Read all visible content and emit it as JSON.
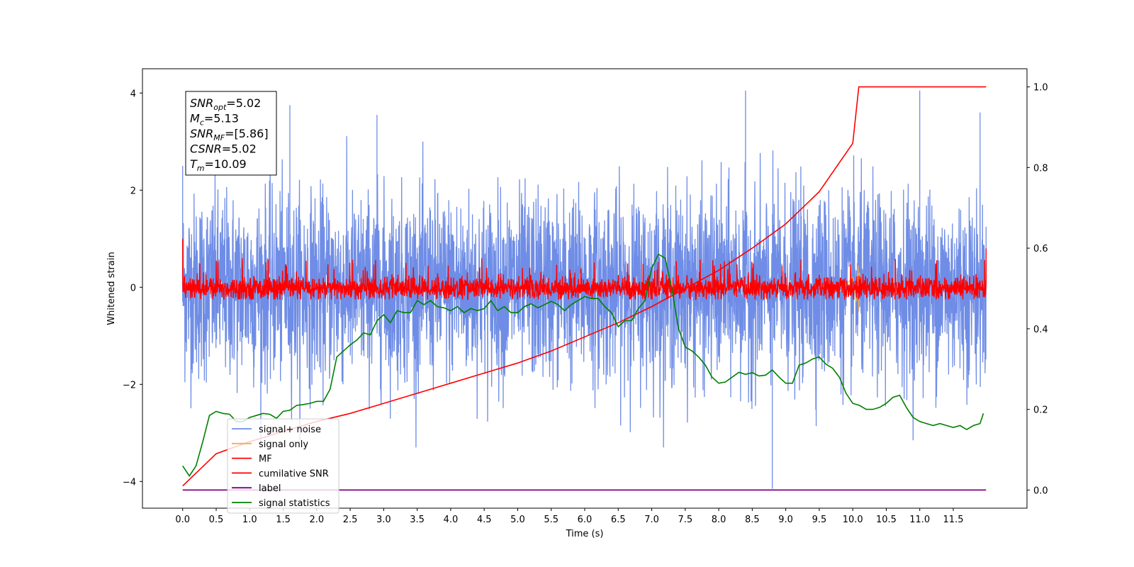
{
  "chart_data": {
    "type": "line",
    "xlabel": "Time (s)",
    "ylabel": "Whitened strain",
    "xlim": [
      -0.6,
      12.6
    ],
    "ylim": [
      -4.55,
      4.5
    ],
    "y2lim": [
      -0.045,
      1.045
    ],
    "xticks": [
      0.0,
      0.5,
      1.0,
      1.5,
      2.0,
      2.5,
      3.0,
      3.5,
      4.0,
      4.5,
      5.0,
      5.5,
      6.0,
      6.5,
      7.0,
      7.5,
      8.0,
      8.5,
      9.0,
      9.5,
      10.0,
      10.5,
      11.0,
      11.5
    ],
    "xtick_labels": [
      "0.0",
      "0.5",
      "1.0",
      "1.5",
      "2.0",
      "2.5",
      "3.0",
      "3.5",
      "4.0",
      "4.5",
      "5.0",
      "5.5",
      "6.0",
      "6.5",
      "7.0",
      "7.5",
      "8.0",
      "8.5",
      "9.0",
      "9.5",
      "10.0",
      "10.5",
      "11.0",
      "11.5"
    ],
    "yticks": [
      -4,
      -2,
      0,
      2,
      4
    ],
    "ytick_labels": [
      "−4",
      "−2",
      "0",
      "2",
      "4"
    ],
    "y2ticks": [
      0.0,
      0.2,
      0.4,
      0.6,
      0.8,
      1.0
    ],
    "y2tick_labels": [
      "0.0",
      "0.2",
      "0.4",
      "0.6",
      "0.8",
      "1.0"
    ],
    "grid": false,
    "legend_position": "lower-left",
    "colors": {
      "signal_noise": "#6f8de6",
      "signal_only": "#f5b042",
      "mf": "#ff0000",
      "cumulative": "#ff0000",
      "label": "#800080",
      "statistics": "#008000"
    },
    "series": [
      {
        "name": "signal+ noise",
        "axis": "left",
        "description_noise": true,
        "x_range": [
          0.0,
          11.99
        ],
        "mean": 0.0,
        "std": 0.95,
        "peaks": [
          [
            0.0,
            2.5
          ],
          [
            1.6,
            3.75
          ],
          [
            2.9,
            3.55
          ],
          [
            8.4,
            4.05
          ],
          [
            8.8,
            -4.15
          ],
          [
            11.0,
            4.05
          ],
          [
            11.9,
            3.6
          ]
        ]
      },
      {
        "name": "signal only",
        "axis": "left",
        "x": [
          9.6,
          9.8,
          10.0,
          10.05,
          10.08,
          10.09,
          10.1,
          10.12
        ],
        "y": [
          0.05,
          -0.1,
          0.2,
          -0.3,
          0.45,
          -0.5,
          0.3,
          0.0
        ]
      },
      {
        "name": "MF",
        "axis": "left",
        "x_range": [
          0.0,
          11.99
        ],
        "mean": -0.02,
        "std": 0.12,
        "edge_values": [
          1.0,
          0.8
        ]
      },
      {
        "name": "cumilative SNR",
        "axis": "right",
        "x": [
          0.0,
          0.5,
          1.0,
          1.5,
          2.0,
          2.5,
          3.0,
          3.5,
          4.0,
          4.5,
          5.0,
          5.5,
          6.0,
          6.5,
          7.0,
          7.5,
          8.0,
          8.5,
          9.0,
          9.5,
          10.0,
          10.09,
          11.99
        ],
        "y": [
          0.01,
          0.09,
          0.12,
          0.145,
          0.17,
          0.19,
          0.215,
          0.24,
          0.265,
          0.29,
          0.315,
          0.345,
          0.38,
          0.415,
          0.455,
          0.5,
          0.545,
          0.6,
          0.66,
          0.74,
          0.86,
          1.0,
          1.0
        ]
      },
      {
        "name": "label",
        "axis": "right",
        "x": [
          0.0,
          11.99
        ],
        "y": [
          0.0,
          0.0
        ]
      },
      {
        "name": "signal statistics",
        "axis": "right",
        "x": [
          0.0,
          0.1,
          0.2,
          0.3,
          0.4,
          0.5,
          0.6,
          0.7,
          0.8,
          0.9,
          1.0,
          1.1,
          1.2,
          1.3,
          1.4,
          1.5,
          1.6,
          1.7,
          1.8,
          1.9,
          2.0,
          2.1,
          2.2,
          2.3,
          2.4,
          2.5,
          2.6,
          2.7,
          2.8,
          2.9,
          3.0,
          3.1,
          3.2,
          3.3,
          3.4,
          3.5,
          3.6,
          3.7,
          3.8,
          3.9,
          4.0,
          4.1,
          4.2,
          4.3,
          4.4,
          4.5,
          4.6,
          4.7,
          4.8,
          4.9,
          5.0,
          5.1,
          5.2,
          5.3,
          5.4,
          5.5,
          5.6,
          5.7,
          5.8,
          5.9,
          6.0,
          6.1,
          6.2,
          6.3,
          6.4,
          6.5,
          6.6,
          6.7,
          6.8,
          6.9,
          7.0,
          7.1,
          7.2,
          7.3,
          7.4,
          7.5,
          7.6,
          7.7,
          7.8,
          7.9,
          8.0,
          8.1,
          8.2,
          8.3,
          8.4,
          8.5,
          8.6,
          8.7,
          8.8,
          8.9,
          9.0,
          9.1,
          9.2,
          9.3,
          9.4,
          9.5,
          9.6,
          9.7,
          9.8,
          9.9,
          10.0,
          10.1,
          10.2,
          10.3,
          10.4,
          10.5,
          10.6,
          10.7,
          10.8,
          10.9,
          11.0,
          11.1,
          11.2,
          11.3,
          11.4,
          11.5,
          11.6,
          11.7,
          11.8,
          11.9,
          11.95
        ],
        "y": [
          0.06,
          0.035,
          0.06,
          0.12,
          0.185,
          0.195,
          0.19,
          0.188,
          0.17,
          0.17,
          0.18,
          0.185,
          0.19,
          0.188,
          0.178,
          0.195,
          0.198,
          0.21,
          0.212,
          0.215,
          0.22,
          0.22,
          0.25,
          0.33,
          0.345,
          0.36,
          0.372,
          0.39,
          0.385,
          0.42,
          0.435,
          0.415,
          0.445,
          0.44,
          0.44,
          0.47,
          0.46,
          0.47,
          0.455,
          0.452,
          0.445,
          0.455,
          0.44,
          0.45,
          0.445,
          0.45,
          0.47,
          0.445,
          0.455,
          0.44,
          0.44,
          0.455,
          0.462,
          0.452,
          0.46,
          0.468,
          0.46,
          0.445,
          0.46,
          0.47,
          0.48,
          0.475,
          0.475,
          0.455,
          0.44,
          0.405,
          0.42,
          0.42,
          0.45,
          0.47,
          0.55,
          0.585,
          0.575,
          0.5,
          0.4,
          0.355,
          0.345,
          0.33,
          0.31,
          0.28,
          0.265,
          0.268,
          0.28,
          0.292,
          0.287,
          0.291,
          0.283,
          0.285,
          0.298,
          0.28,
          0.265,
          0.265,
          0.31,
          0.315,
          0.325,
          0.33,
          0.312,
          0.302,
          0.28,
          0.24,
          0.215,
          0.21,
          0.2,
          0.2,
          0.205,
          0.215,
          0.23,
          0.235,
          0.205,
          0.18,
          0.17,
          0.165,
          0.16,
          0.165,
          0.16,
          0.155,
          0.16,
          0.15,
          0.16,
          0.165,
          0.19
        ]
      }
    ],
    "annotation": [
      {
        "label": "SNR",
        "sub": "opt",
        "value": "=5.02"
      },
      {
        "label": "M",
        "sub": "c",
        "value": "=5.13"
      },
      {
        "label": "SNR",
        "sub": "MF",
        "value": "=[5.86]"
      },
      {
        "label": "CSNR",
        "sub": "",
        "value": "=5.02"
      },
      {
        "label": "T",
        "sub": "m",
        "value": "=10.09"
      }
    ]
  }
}
